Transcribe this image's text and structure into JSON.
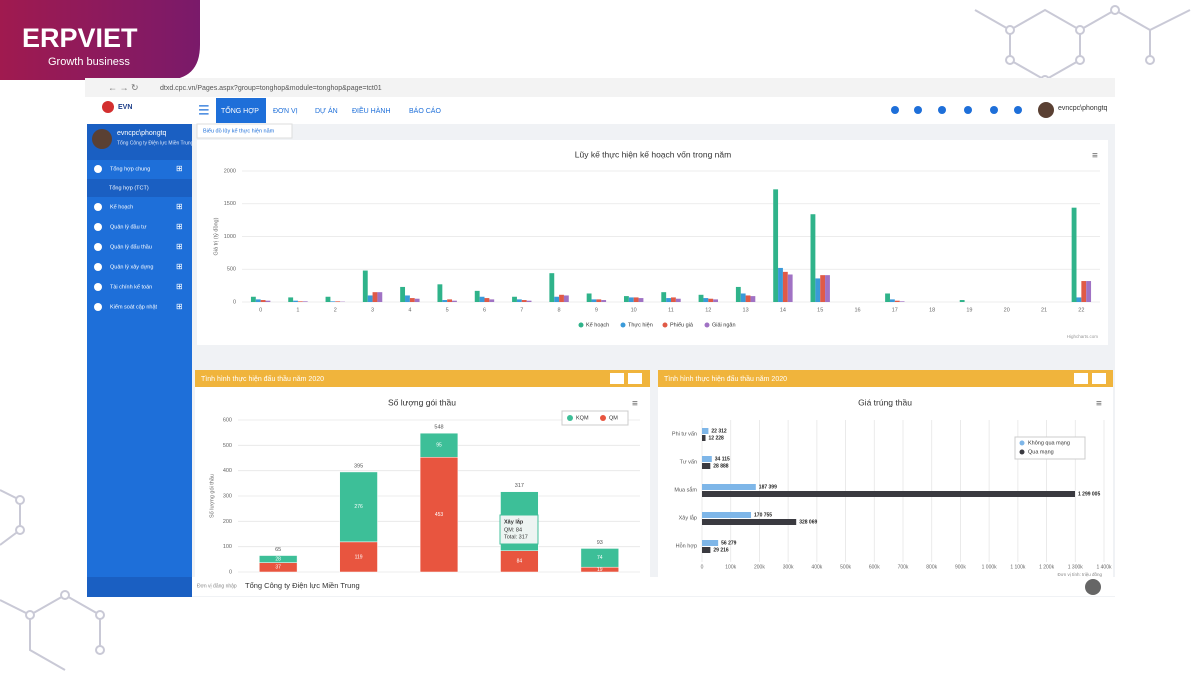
{
  "branding": {
    "logo": "ERPVIET",
    "tagline": "Growth business"
  },
  "browser": {
    "url": "dtxd.cpc.vn/Pages.aspx?group=tonghop&module=tonghop&page=tct01"
  },
  "nav": {
    "brand": "EVN",
    "tabs": [
      "TỔNG HỢP",
      "ĐƠN VỊ",
      "DỰ ÁN",
      "ĐIỀU HÀNH",
      "BÁO CÁO"
    ],
    "user": "evncpc\\phongtq"
  },
  "sidebar": {
    "user": "evncpc\\phongtq",
    "org": "Tổng Công ty Điện lực Miền Trung",
    "items": [
      "Tổng hợp chung",
      "Tổng hợp (TCT)",
      "Kế hoạch",
      "Quản lý đầu tư",
      "Quản lý đấu thầu",
      "Quản lý xây dựng",
      "Tài chính kế toán",
      "Kiểm soát cập nhật"
    ]
  },
  "tab": "Biểu đồ lũy kế thực hiện năm",
  "panels": [
    "Tình hình thực hiện đấu thầu năm 2020",
    "Tình hình thực hiện đấu thầu năm 2020"
  ],
  "footer": {
    "label": "Đơn vị đăng nhập",
    "value": "Tổng Công ty Điện lực Miền Trung"
  },
  "chart_data": [
    {
      "type": "bar",
      "title": "Lũy kế thực hiện kế hoạch vốn trong năm",
      "y_label": "Giá trị (tỷ đồng)",
      "credits": "Highcharts.com",
      "categories": [
        "0",
        "1",
        "2",
        "3",
        "4",
        "5",
        "6",
        "7",
        "8",
        "9",
        "10",
        "11",
        "12",
        "13",
        "14",
        "15",
        "16",
        "17",
        "18",
        "19",
        "20",
        "21",
        "22"
      ],
      "series": [
        {
          "name": "Kế hoạch",
          "color": "#2fb38a",
          "values": [
            80,
            70,
            80,
            480,
            230,
            270,
            170,
            80,
            440,
            130,
            90,
            150,
            110,
            230,
            1720,
            1340,
            0,
            130,
            0,
            30,
            0,
            0,
            1440
          ]
        },
        {
          "name": "Thực hiện",
          "color": "#3a9ad9",
          "values": [
            40,
            20,
            10,
            100,
            100,
            30,
            80,
            40,
            80,
            40,
            70,
            60,
            60,
            130,
            520,
            360,
            0,
            40,
            0,
            0,
            0,
            0,
            70
          ]
        },
        {
          "name": "Phiếu giá",
          "color": "#e05a47",
          "values": [
            30,
            10,
            10,
            150,
            60,
            40,
            60,
            30,
            110,
            40,
            70,
            70,
            50,
            100,
            460,
            410,
            0,
            20,
            0,
            0,
            0,
            0,
            320
          ]
        },
        {
          "name": "Giải ngân",
          "color": "#a072c4",
          "values": [
            20,
            10,
            5,
            150,
            50,
            20,
            40,
            20,
            100,
            30,
            60,
            50,
            40,
            90,
            420,
            410,
            0,
            10,
            0,
            0,
            0,
            0,
            320
          ]
        }
      ],
      "ylim": [
        0,
        2000
      ],
      "yticks": [
        0,
        500,
        1000,
        1500,
        2000
      ],
      "grid": true,
      "legend": "bottom"
    },
    {
      "type": "stacked_bar",
      "title": "Số lượng gói thầu",
      "y_label": "Số lượng gói thầu",
      "categories": [
        null,
        null,
        null,
        null,
        null
      ],
      "series": [
        {
          "name": "KQM",
          "color": "#3dbf98",
          "values": [
            28,
            276,
            95,
            233,
            74
          ]
        },
        {
          "name": "QM",
          "color": "#e8553f",
          "values": [
            37,
            119,
            453,
            84,
            19
          ]
        }
      ],
      "totals": [
        65,
        395,
        548,
        317,
        93
      ],
      "tooltip": {
        "title": "Xây lắp",
        "lines": [
          "QM: 84",
          "Total: 317"
        ]
      },
      "ylim": [
        0,
        600
      ],
      "yticks": [
        0,
        100,
        200,
        300,
        400,
        500,
        600
      ],
      "grid": true,
      "legend": "top-right"
    },
    {
      "type": "horizontal_bar",
      "title": "Giá trúng thầu",
      "x_label": "Đơn vị tính: triệu đồng",
      "categories": [
        "Phi tư vấn",
        "Tư vấn",
        "Mua sắm",
        "Xây lắp",
        "Hỗn hợp"
      ],
      "series": [
        {
          "name": "Không qua mạng",
          "color": "#7eb6e8",
          "values": [
            22312,
            34115,
            187399,
            170755,
            56279
          ],
          "value_labels": [
            "22 312",
            "34 115",
            "187 399",
            "170 755",
            "56 279"
          ]
        },
        {
          "name": "Qua mạng",
          "color": "#3a3a40",
          "values": [
            12228,
            28888,
            1299005,
            328069,
            29216
          ],
          "value_labels": [
            "12 228",
            "28 888",
            "1 299 005",
            "328 069",
            "29 216"
          ]
        }
      ],
      "xlim": [
        0,
        1400000
      ],
      "xticks": [
        0,
        {
          "value": 100000,
          "label": "100k"
        },
        {
          "value": 200000,
          "label": "200k"
        },
        {
          "value": 300000,
          "label": "300k"
        },
        {
          "value": 400000,
          "label": "400k"
        },
        {
          "value": 500000,
          "label": "500k"
        },
        {
          "value": 600000,
          "label": "600k"
        },
        {
          "value": 700000,
          "label": "700k"
        },
        {
          "value": 800000,
          "label": "800k"
        },
        {
          "value": 900000,
          "label": "900k"
        },
        {
          "value": 1000000,
          "label": "1 000k"
        },
        {
          "value": 1100000,
          "label": "1 100k"
        },
        {
          "value": 1200000,
          "label": "1 200k"
        },
        {
          "value": 1300000,
          "label": "1 300k"
        },
        {
          "value": 1400000,
          "label": "1 400k"
        }
      ],
      "grid": true,
      "legend": "top-right"
    }
  ]
}
